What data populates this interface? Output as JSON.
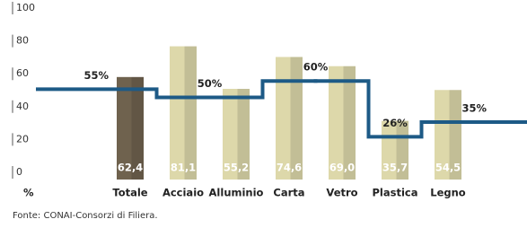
{
  "chart_data": {
    "type": "bar",
    "categories": [
      "Totale",
      "Acciaio",
      "Alluminio",
      "Carta",
      "Vetro",
      "Plastica",
      "Legno"
    ],
    "series": [
      {
        "values": [
          62.4,
          81.1,
          55.2,
          74.6,
          69.0,
          35.7,
          54.5
        ],
        "value_labels": [
          "62,4",
          "81,1",
          "55,2",
          "74,6",
          "69,0",
          "35,7",
          "54,5"
        ],
        "colors": [
          "#6f624e",
          "#ddd8aa",
          "#ddd8aa",
          "#ddd8aa",
          "#ddd8aa",
          "#ddd8aa",
          "#ddd8aa"
        ]
      },
      {
        "type": "step",
        "color": "#1d5a86",
        "values": [
          55,
          50,
          50,
          60,
          60,
          26,
          35
        ],
        "value_labels": [
          "55%",
          "50%",
          null,
          "60%",
          null,
          "26%",
          "35%"
        ]
      }
    ],
    "ylabel": "%",
    "ylim": [
      0,
      100
    ],
    "yticks": [
      0,
      20,
      40,
      60,
      80,
      100
    ],
    "source": "Fonte: CONAI-Consorzi di Filiera."
  }
}
